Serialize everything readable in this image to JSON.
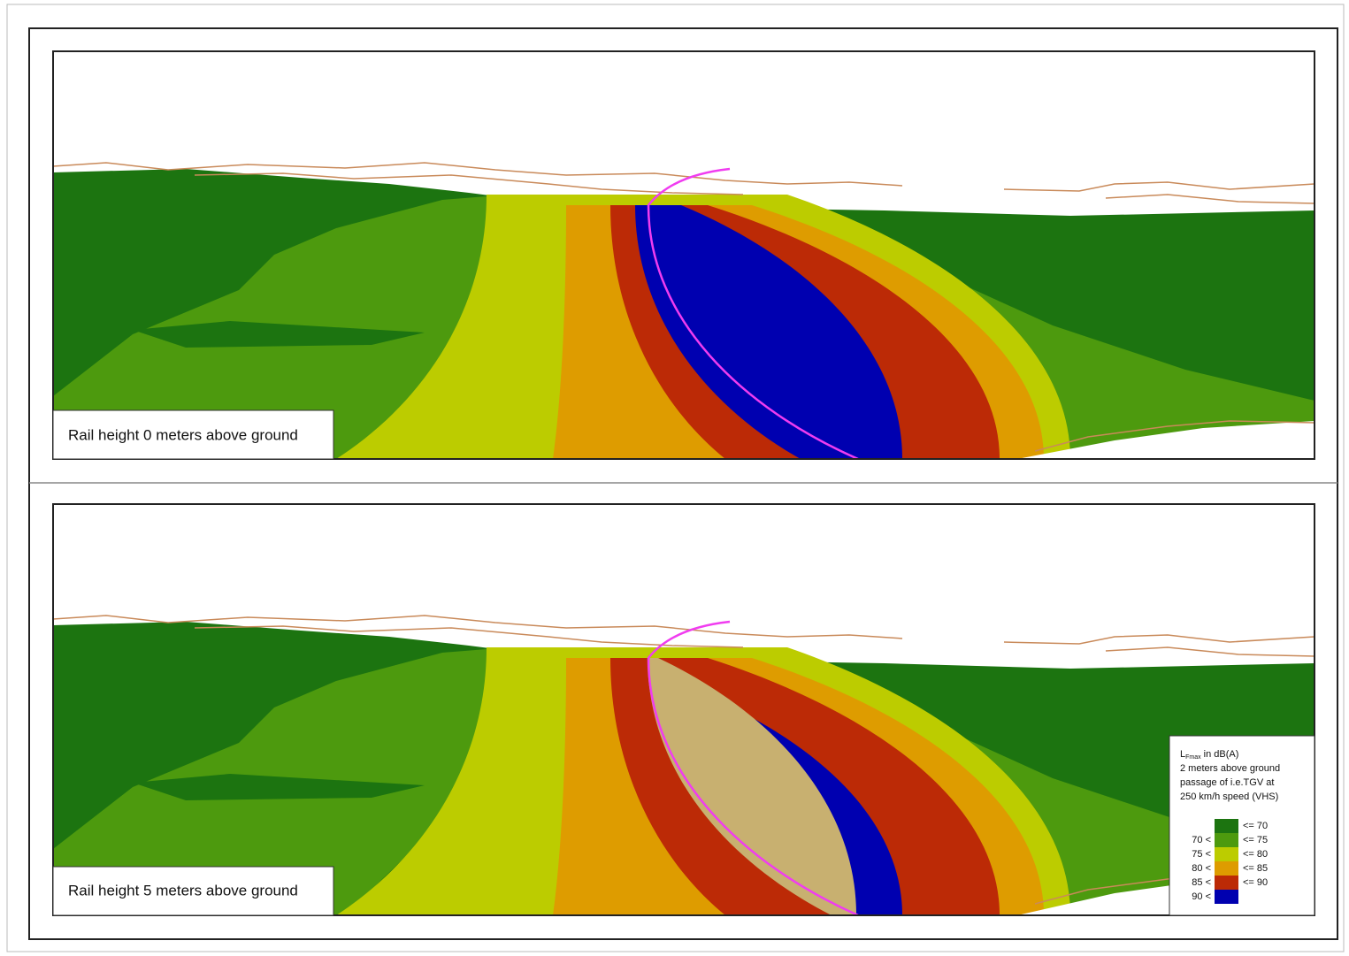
{
  "panels": [
    {
      "label": "Rail height 0 meters above ground"
    },
    {
      "label": "Rail height 5 meters above ground"
    }
  ],
  "legend": {
    "title": "L",
    "title_sub": "Fmax",
    "title_rest": "in dB(A)",
    "lines": [
      "2 meters above ground",
      "passage of i.e.TGV at",
      "250 km/h speed (VHS)"
    ],
    "items": [
      {
        "high": "<=  70",
        "color": "#1c7410"
      },
      {
        "low": "70 <",
        "high": "<=  75",
        "color": "#4d9a0e"
      },
      {
        "low": "75 <",
        "high": "<=  80",
        "color": "#bccc00"
      },
      {
        "low": "80 <",
        "high": "<=  85",
        "color": "#de9c00"
      },
      {
        "low": "85 <",
        "high": "<=  90",
        "color": "#bc2a06"
      },
      {
        "low": "90 <",
        "color": "#0000b0"
      }
    ]
  }
}
